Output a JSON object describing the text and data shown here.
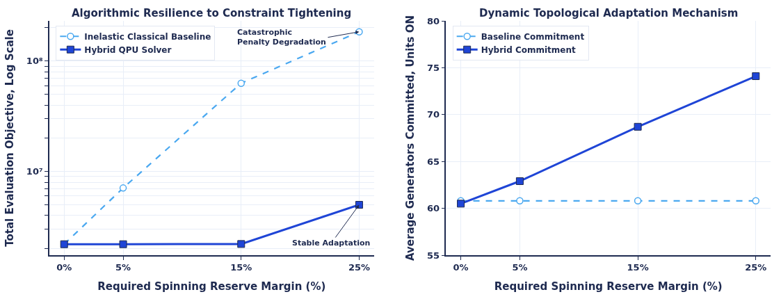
{
  "chart_data": [
    {
      "type": "line",
      "title": "Algorithmic Resilience to Constraint Tightening",
      "xlabel": "Required Spinning Reserve Margin (%)",
      "ylabel": "Total Evaluation Objective, Log Scale",
      "log": "y",
      "grid": true,
      "legend": "top left",
      "x": [
        0,
        5,
        15,
        25
      ],
      "xlim": [
        -1.25,
        26.25
      ],
      "xticks": [
        {
          "value": 0,
          "label": "0%"
        },
        {
          "value": 5,
          "label": "5%"
        },
        {
          "value": 15,
          "label": "15%"
        },
        {
          "value": 25,
          "label": "25%"
        }
      ],
      "ylim": [
        1750000,
        231000000
      ],
      "yticks": [
        {
          "value": 2000000,
          "label": null
        },
        {
          "value": 3000000,
          "label": null
        },
        {
          "value": 4000000,
          "label": null
        },
        {
          "value": 5000000,
          "label": null
        },
        {
          "value": 6000000,
          "label": null
        },
        {
          "value": 7000000,
          "label": null
        },
        {
          "value": 8000000,
          "label": null
        },
        {
          "value": 9000000,
          "label": null
        },
        {
          "value": 10000000,
          "label": "10⁷"
        },
        {
          "value": 20000000,
          "label": null
        },
        {
          "value": 30000000,
          "label": null
        },
        {
          "value": 40000000,
          "label": null
        },
        {
          "value": 50000000,
          "label": null
        },
        {
          "value": 60000000,
          "label": null
        },
        {
          "value": 70000000,
          "label": null
        },
        {
          "value": 80000000,
          "label": null
        },
        {
          "value": 90000000,
          "label": null
        },
        {
          "value": 100000000,
          "label": "10⁸"
        },
        {
          "value": 200000000,
          "label": null
        }
      ],
      "series": [
        {
          "name": "Inelastic Classical Baseline",
          "color": "#4aa8f0",
          "values": [
            2200000,
            7100000,
            63000000,
            184000000
          ],
          "marker": "circle",
          "line_style": "dashed"
        },
        {
          "name": "Hybrid QPU Solver",
          "color": "#1f45d6",
          "values": [
            2200000,
            2200000,
            2210000,
            5000000
          ],
          "marker": "square",
          "line_style": "solid"
        }
      ],
      "annotations": [
        {
          "text": "Catastrophic\nPenalty Degradation",
          "x": 25,
          "y": 184000000
        },
        {
          "text": "Stable Adaptation",
          "x": 25,
          "y": 5000000
        }
      ]
    },
    {
      "type": "line",
      "title": "Dynamic Topological Adaptation Mechanism",
      "xlabel": "Required Spinning Reserve Margin (%)",
      "ylabel": "Average Generators Committed, Units ON",
      "grid": true,
      "legend": "top left",
      "x": [
        0,
        5,
        15,
        25
      ],
      "xlim": [
        -1.25,
        26.25
      ],
      "xticks": [
        {
          "value": 0,
          "label": "0%"
        },
        {
          "value": 5,
          "label": "5%"
        },
        {
          "value": 15,
          "label": "15%"
        },
        {
          "value": 25,
          "label": "25%"
        }
      ],
      "ylim": [
        55,
        80
      ],
      "yticks": [
        55,
        60,
        65,
        70,
        75,
        80
      ],
      "series": [
        {
          "name": "Baseline Commitment",
          "color": "#4aa8f0",
          "values": [
            60.8,
            60.8,
            60.8,
            60.8
          ],
          "marker": "circle",
          "line_style": "dashed"
        },
        {
          "name": "Hybrid Commitment",
          "color": "#1f45d6",
          "values": [
            60.5,
            62.9,
            68.7,
            74.1
          ],
          "marker": "square",
          "line_style": "solid"
        }
      ]
    }
  ]
}
